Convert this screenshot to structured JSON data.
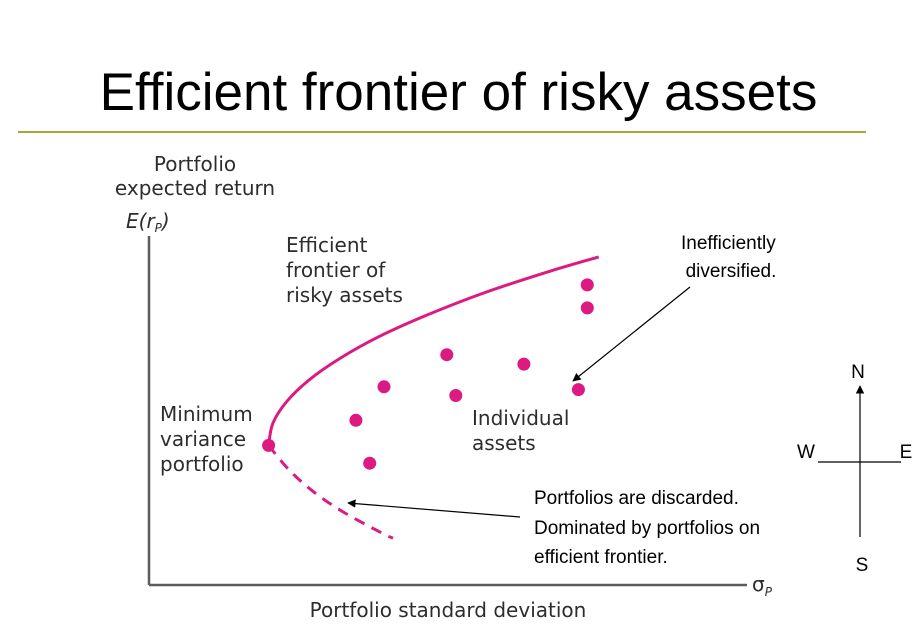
{
  "slide": {
    "title": "Efficient frontier of risky assets",
    "rule_color": "#a8a832"
  },
  "chart_data": {
    "type": "scatter",
    "title": "",
    "ylabel_lines": [
      "Portfolio",
      "expected return"
    ],
    "ylabel_symbol": "E(r",
    "ylabel_symbol_sub": "P",
    "ylabel_symbol_close": ")",
    "xlabel": "Portfolio standard deviation",
    "xlabel_symbol": "σ",
    "xlabel_symbol_sub": "P",
    "xlim": [
      0,
      10
    ],
    "ylim": [
      0,
      10
    ],
    "grid": false,
    "accent_color": "#dc1a82",
    "frontier_efficient": {
      "x": [
        2.0,
        2.07,
        2.3,
        2.68,
        3.2,
        3.86,
        4.67,
        5.62,
        6.72,
        7.52
      ],
      "y": [
        4.0,
        4.63,
        5.25,
        5.88,
        6.5,
        7.13,
        7.75,
        8.38,
        9.0,
        9.4
      ]
    },
    "frontier_inefficient": {
      "x": [
        2.0,
        2.33,
        2.73,
        3.22,
        3.88,
        4.08
      ],
      "y": [
        4.0,
        3.32,
        2.7,
        2.12,
        1.5,
        1.34
      ]
    },
    "assets": [
      {
        "x": 7.33,
        "y": 8.6
      },
      {
        "x": 7.33,
        "y": 7.94
      },
      {
        "x": 4.98,
        "y": 6.6
      },
      {
        "x": 6.27,
        "y": 6.33
      },
      {
        "x": 3.93,
        "y": 5.68
      },
      {
        "x": 5.13,
        "y": 5.43
      },
      {
        "x": 7.18,
        "y": 5.6
      },
      {
        "x": 3.46,
        "y": 4.72
      },
      {
        "x": 3.69,
        "y": 3.49
      }
    ],
    "min_variance_point": {
      "x": 2.0,
      "y": 4.0
    },
    "annotations": {
      "frontier": [
        "Efficient",
        "frontier of",
        "risky assets"
      ],
      "min_variance": [
        "Minimum",
        "variance",
        "portfolio"
      ],
      "assets": [
        "Individual",
        "assets"
      ],
      "inefficient": [
        "Inefficiently",
        "diversified."
      ],
      "discarded": [
        "Portfolios are discarded.",
        "Dominated by portfolios on",
        "efficient frontier."
      ]
    }
  },
  "compass": {
    "north": "N",
    "south": "S",
    "east": "E",
    "west": "W"
  }
}
